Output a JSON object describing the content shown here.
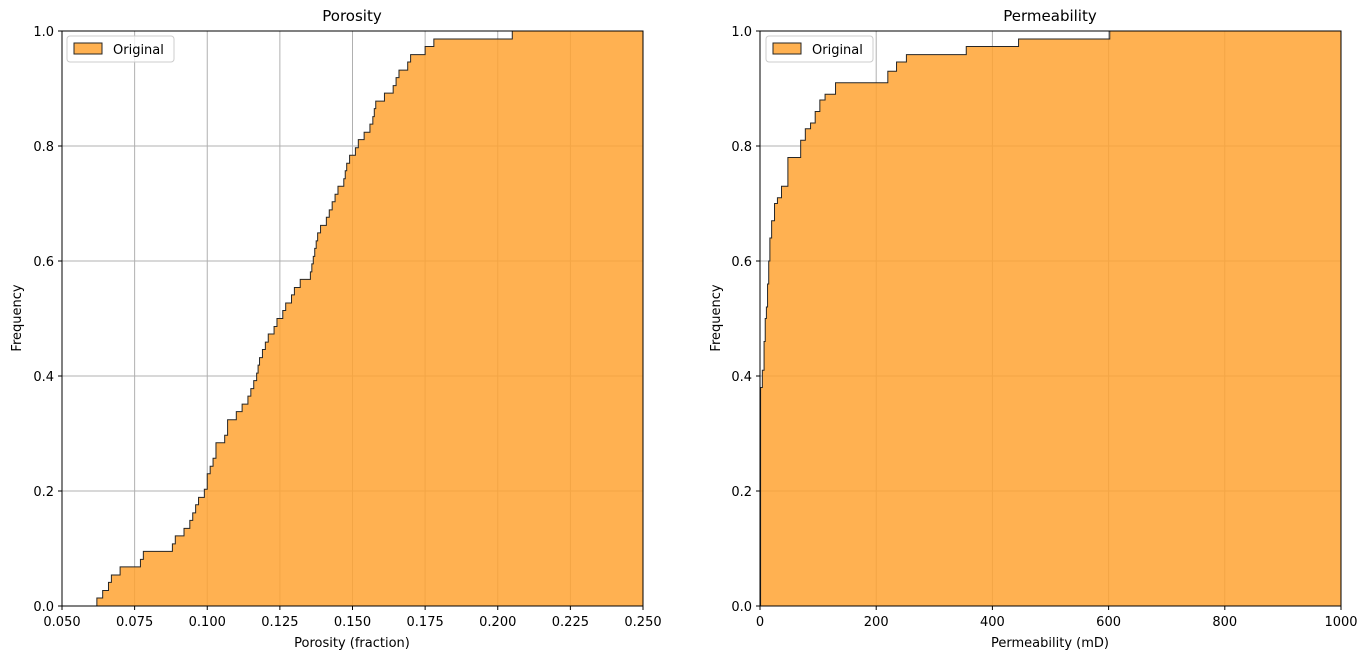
{
  "colors": {
    "fill": "#ffa333",
    "edge": "#262626",
    "grid": "#b0b0b0"
  },
  "chart_data": [
    {
      "type": "area",
      "style": "cumulative-step-histogram",
      "title": "Porosity",
      "xlabel": "Porosity (fraction)",
      "ylabel": "Frequency",
      "xlim": [
        0.05,
        0.25
      ],
      "ylim": [
        0,
        1.0
      ],
      "xticks": [
        0.05,
        0.075,
        0.1,
        0.125,
        0.15,
        0.175,
        0.2,
        0.225,
        0.25
      ],
      "xtick_labels": [
        "0.050",
        "0.075",
        "0.100",
        "0.125",
        "0.150",
        "0.175",
        "0.200",
        "0.225",
        "0.250"
      ],
      "yticks": [
        0,
        0.2,
        0.4,
        0.6,
        0.8,
        1.0
      ],
      "ytick_labels": [
        "0.0",
        "0.2",
        "0.4",
        "0.6",
        "0.8",
        "1.0"
      ],
      "grid": true,
      "legend": {
        "entries": [
          "Original"
        ],
        "position": "upper-left"
      },
      "series": [
        {
          "name": "Original",
          "steps": [
            [
              0.05,
              0.0
            ],
            [
              0.062,
              0.014
            ],
            [
              0.064,
              0.027
            ],
            [
              0.066,
              0.041
            ],
            [
              0.067,
              0.054
            ],
            [
              0.07,
              0.068
            ],
            [
              0.077,
              0.081
            ],
            [
              0.078,
              0.095
            ],
            [
              0.088,
              0.108
            ],
            [
              0.089,
              0.122
            ],
            [
              0.092,
              0.135
            ],
            [
              0.094,
              0.149
            ],
            [
              0.095,
              0.162
            ],
            [
              0.096,
              0.176
            ],
            [
              0.097,
              0.189
            ],
            [
              0.099,
              0.203
            ],
            [
              0.1,
              0.216
            ],
            [
              0.1,
              0.23
            ],
            [
              0.101,
              0.243
            ],
            [
              0.102,
              0.257
            ],
            [
              0.103,
              0.284
            ],
            [
              0.106,
              0.297
            ],
            [
              0.107,
              0.324
            ],
            [
              0.11,
              0.338
            ],
            [
              0.112,
              0.351
            ],
            [
              0.114,
              0.365
            ],
            [
              0.115,
              0.378
            ],
            [
              0.116,
              0.392
            ],
            [
              0.117,
              0.405
            ],
            [
              0.1175,
              0.419
            ],
            [
              0.118,
              0.432
            ],
            [
              0.119,
              0.446
            ],
            [
              0.12,
              0.459
            ],
            [
              0.121,
              0.473
            ],
            [
              0.123,
              0.486
            ],
            [
              0.124,
              0.5
            ],
            [
              0.126,
              0.514
            ],
            [
              0.127,
              0.527
            ],
            [
              0.129,
              0.541
            ],
            [
              0.13,
              0.554
            ],
            [
              0.132,
              0.568
            ],
            [
              0.1355,
              0.581
            ],
            [
              0.136,
              0.595
            ],
            [
              0.1365,
              0.608
            ],
            [
              0.137,
              0.622
            ],
            [
              0.1375,
              0.635
            ],
            [
              0.138,
              0.649
            ],
            [
              0.139,
              0.662
            ],
            [
              0.141,
              0.676
            ],
            [
              0.142,
              0.689
            ],
            [
              0.143,
              0.703
            ],
            [
              0.144,
              0.716
            ],
            [
              0.145,
              0.73
            ],
            [
              0.147,
              0.743
            ],
            [
              0.1475,
              0.757
            ],
            [
              0.148,
              0.77
            ],
            [
              0.149,
              0.784
            ],
            [
              0.151,
              0.797
            ],
            [
              0.152,
              0.811
            ],
            [
              0.154,
              0.824
            ],
            [
              0.156,
              0.838
            ],
            [
              0.157,
              0.851
            ],
            [
              0.1575,
              0.865
            ],
            [
              0.158,
              0.878
            ],
            [
              0.161,
              0.892
            ],
            [
              0.164,
              0.905
            ],
            [
              0.165,
              0.919
            ],
            [
              0.166,
              0.932
            ],
            [
              0.169,
              0.946
            ],
            [
              0.17,
              0.959
            ],
            [
              0.175,
              0.973
            ],
            [
              0.178,
              0.986
            ],
            [
              0.205,
              1.0
            ],
            [
              0.25,
              1.0
            ]
          ]
        }
      ]
    },
    {
      "type": "area",
      "style": "cumulative-step-histogram",
      "title": "Permeability",
      "xlabel": "Permeability (mD)",
      "ylabel": "Frequency",
      "xlim": [
        0,
        1000
      ],
      "ylim": [
        0,
        1.0
      ],
      "xticks": [
        0,
        200,
        400,
        600,
        800,
        1000
      ],
      "xtick_labels": [
        "0",
        "200",
        "400",
        "600",
        "800",
        "1000"
      ],
      "yticks": [
        0,
        0.2,
        0.4,
        0.6,
        0.8,
        1.0
      ],
      "ytick_labels": [
        "0.0",
        "0.2",
        "0.4",
        "0.6",
        "0.8",
        "1.0"
      ],
      "grid": true,
      "legend": {
        "entries": [
          "Original"
        ],
        "position": "upper-left"
      },
      "series": [
        {
          "name": "Original",
          "steps": [
            [
              0,
              0.0
            ],
            [
              1,
              0.38
            ],
            [
              4,
              0.41
            ],
            [
              7,
              0.46
            ],
            [
              9,
              0.5
            ],
            [
              11,
              0.52
            ],
            [
              13,
              0.56
            ],
            [
              15,
              0.6
            ],
            [
              17,
              0.64
            ],
            [
              20,
              0.67
            ],
            [
              25,
              0.7
            ],
            [
              30,
              0.71
            ],
            [
              37,
              0.73
            ],
            [
              48,
              0.78
            ],
            [
              70,
              0.81
            ],
            [
              78,
              0.83
            ],
            [
              87,
              0.84
            ],
            [
              95,
              0.86
            ],
            [
              103,
              0.88
            ],
            [
              112,
              0.89
            ],
            [
              130,
              0.91
            ],
            [
              220,
              0.93
            ],
            [
              235,
              0.946
            ],
            [
              252,
              0.959
            ],
            [
              355,
              0.973
            ],
            [
              445,
              0.986
            ],
            [
              602,
              1.0
            ],
            [
              1000,
              1.0
            ]
          ]
        }
      ]
    }
  ]
}
